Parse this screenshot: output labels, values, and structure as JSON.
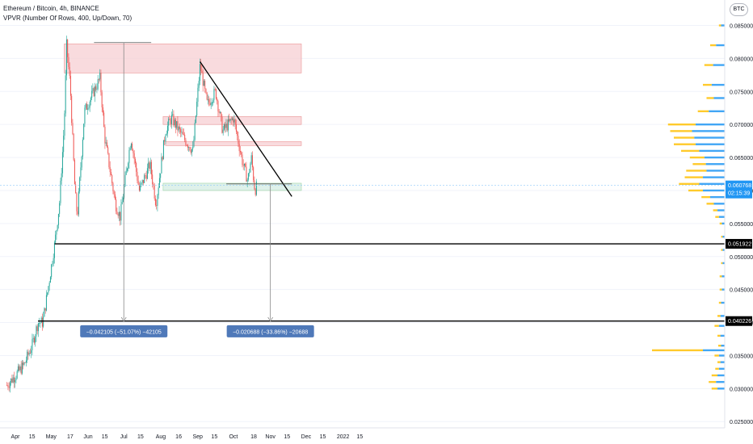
{
  "header": {
    "title": "Ethereum / Bitcoin, 4h, BINANCE",
    "indicator": "VPVR (Number Of Rows, 400, Up/Down, 70)",
    "currency_badge": "BTC"
  },
  "colors": {
    "up": "#26a69a",
    "down": "#ef5350",
    "vp_up": "#2196f3",
    "vp_down": "#ffc107",
    "zone_red_fill": "#f8d0d4",
    "zone_red_stroke": "#e57373",
    "zone_green_fill": "#d4ede4",
    "zone_green_stroke": "#81c784",
    "label_blue": "#4f79b9",
    "cursor_line": "#90caf9"
  },
  "price_axis": {
    "min": 0.025,
    "max": 0.0875,
    "ticks": [
      "0.085000",
      "0.080000",
      "0.075000",
      "0.070000",
      "0.065000",
      "0.060000",
      "0.055000",
      "0.050000",
      "0.045000",
      "0.040000",
      "0.035000",
      "0.030000",
      "0.025000"
    ],
    "current_price": "0.060768",
    "countdown": "02:15:39",
    "level_labels": [
      "0.051922",
      "0.040226"
    ]
  },
  "time_axis": {
    "labels": [
      "Apr",
      "15",
      "May",
      "17",
      "Jun",
      "15",
      "Jul",
      "15",
      "Aug",
      "16",
      "Sep",
      "15",
      "Oct",
      "18",
      "Nov",
      "15",
      "Dec",
      "15",
      "2022",
      "15"
    ]
  },
  "chart_data": {
    "type": "candlestick",
    "title": "Ethereum / Bitcoin, 4h, BINANCE",
    "series_path": [
      {
        "date": "2021-03-25",
        "price": 0.0305
      },
      {
        "date": "2021-04-08",
        "price": 0.0335
      },
      {
        "date": "2021-04-15",
        "price": 0.0365
      },
      {
        "date": "2021-04-20",
        "price": 0.04
      },
      {
        "date": "2021-04-24",
        "price": 0.04
      },
      {
        "date": "2021-04-30",
        "price": 0.047
      },
      {
        "date": "2021-05-04",
        "price": 0.0519
      },
      {
        "date": "2021-05-08",
        "price": 0.058
      },
      {
        "date": "2021-05-12",
        "price": 0.07
      },
      {
        "date": "2021-05-14",
        "price": 0.082
      },
      {
        "date": "2021-05-17",
        "price": 0.076
      },
      {
        "date": "2021-05-21",
        "price": 0.06
      },
      {
        "date": "2021-05-23",
        "price": 0.056
      },
      {
        "date": "2021-05-29",
        "price": 0.072
      },
      {
        "date": "2021-06-11",
        "price": 0.077
      },
      {
        "date": "2021-06-15",
        "price": 0.068
      },
      {
        "date": "2021-06-24",
        "price": 0.058
      },
      {
        "date": "2021-06-28",
        "price": 0.056
      },
      {
        "date": "2021-07-07",
        "price": 0.068
      },
      {
        "date": "2021-07-14",
        "price": 0.06
      },
      {
        "date": "2021-07-23",
        "price": 0.064
      },
      {
        "date": "2021-07-28",
        "price": 0.058
      },
      {
        "date": "2021-08-05",
        "price": 0.069
      },
      {
        "date": "2021-08-10",
        "price": 0.071
      },
      {
        "date": "2021-08-20",
        "price": 0.068
      },
      {
        "date": "2021-08-28",
        "price": 0.066
      },
      {
        "date": "2021-09-03",
        "price": 0.079
      },
      {
        "date": "2021-09-09",
        "price": 0.073
      },
      {
        "date": "2021-09-16",
        "price": 0.075
      },
      {
        "date": "2021-09-22",
        "price": 0.069
      },
      {
        "date": "2021-10-01",
        "price": 0.071
      },
      {
        "date": "2021-10-09",
        "price": 0.064
      },
      {
        "date": "2021-10-13",
        "price": 0.0615
      },
      {
        "date": "2021-10-16",
        "price": 0.065
      },
      {
        "date": "2021-10-19",
        "price": 0.06
      },
      {
        "date": "2021-10-21",
        "price": 0.0608
      }
    ],
    "zones": [
      {
        "color": "red",
        "from": "2021-05-12",
        "to": "2021-11-27",
        "low": 0.0778,
        "high": 0.0822
      },
      {
        "color": "red",
        "from": "2021-08-03",
        "to": "2021-11-27",
        "low": 0.07,
        "high": 0.0712
      },
      {
        "color": "red",
        "from": "2021-08-05",
        "to": "2021-11-27",
        "low": 0.0668,
        "high": 0.0674
      },
      {
        "color": "green",
        "from": "2021-08-03",
        "to": "2021-11-27",
        "low": 0.06,
        "high": 0.0611
      }
    ],
    "trendline": {
      "from": {
        "date": "2021-09-03",
        "price": 0.0795
      },
      "to": {
        "date": "2021-11-19",
        "price": 0.0591
      }
    },
    "horizontal_levels": [
      {
        "value": 0.051922,
        "from": "2021-05-04"
      },
      {
        "value": 0.040226,
        "from": "2021-04-20"
      }
    ],
    "measurements": [
      {
        "date": "2021-07-01",
        "from_price": 0.0824,
        "to_price": 0.0402,
        "label": "−0.042105 (−51.07%) −42105"
      },
      {
        "date": "2021-11-01",
        "from_price": 0.061,
        "to_price": 0.0402,
        "label": "−0.020688 (−33.86%) −20688"
      }
    ],
    "volume_profile": [
      {
        "price": 0.085,
        "up": 0.05,
        "down": 0.03
      },
      {
        "price": 0.082,
        "up": 0.12,
        "down": 0.08
      },
      {
        "price": 0.079,
        "up": 0.16,
        "down": 0.12
      },
      {
        "price": 0.076,
        "up": 0.18,
        "down": 0.12
      },
      {
        "price": 0.074,
        "up": 0.15,
        "down": 0.1
      },
      {
        "price": 0.072,
        "up": 0.22,
        "down": 0.15
      },
      {
        "price": 0.07,
        "up": 0.4,
        "down": 0.38
      },
      {
        "price": 0.069,
        "up": 0.45,
        "down": 0.3
      },
      {
        "price": 0.068,
        "up": 0.42,
        "down": 0.28
      },
      {
        "price": 0.067,
        "up": 0.4,
        "down": 0.3
      },
      {
        "price": 0.066,
        "up": 0.35,
        "down": 0.25
      },
      {
        "price": 0.065,
        "up": 0.28,
        "down": 0.2
      },
      {
        "price": 0.064,
        "up": 0.26,
        "down": 0.18
      },
      {
        "price": 0.063,
        "up": 0.25,
        "down": 0.28
      },
      {
        "price": 0.062,
        "up": 0.3,
        "down": 0.25
      },
      {
        "price": 0.061,
        "up": 0.35,
        "down": 0.28
      },
      {
        "price": 0.06,
        "up": 0.3,
        "down": 0.2
      },
      {
        "price": 0.059,
        "up": 0.2,
        "down": 0.12
      },
      {
        "price": 0.058,
        "up": 0.15,
        "down": 0.1
      },
      {
        "price": 0.057,
        "up": 0.1,
        "down": 0.06
      },
      {
        "price": 0.056,
        "up": 0.08,
        "down": 0.05
      },
      {
        "price": 0.055,
        "up": 0.04,
        "down": 0.03
      },
      {
        "price": 0.053,
        "up": 0.03,
        "down": 0.02
      },
      {
        "price": 0.051,
        "up": 0.03,
        "down": 0.02
      },
      {
        "price": 0.049,
        "up": 0.03,
        "down": 0.02
      },
      {
        "price": 0.047,
        "up": 0.04,
        "down": 0.03
      },
      {
        "price": 0.045,
        "up": 0.04,
        "down": 0.03
      },
      {
        "price": 0.043,
        "up": 0.05,
        "down": 0.03
      },
      {
        "price": 0.041,
        "up": 0.06,
        "down": 0.04
      },
      {
        "price": 0.0395,
        "up": 0.08,
        "down": 0.06
      },
      {
        "price": 0.038,
        "up": 0.06,
        "down": 0.04
      },
      {
        "price": 0.0365,
        "up": 0.05,
        "down": 0.04
      },
      {
        "price": 0.0358,
        "up": 0.3,
        "down": 0.7
      },
      {
        "price": 0.035,
        "up": 0.08,
        "down": 0.06
      },
      {
        "price": 0.034,
        "up": 0.06,
        "down": 0.04
      },
      {
        "price": 0.033,
        "up": 0.08,
        "down": 0.05
      },
      {
        "price": 0.032,
        "up": 0.1,
        "down": 0.08
      },
      {
        "price": 0.031,
        "up": 0.12,
        "down": 0.1
      },
      {
        "price": 0.03,
        "up": 0.1,
        "down": 0.08
      }
    ]
  }
}
